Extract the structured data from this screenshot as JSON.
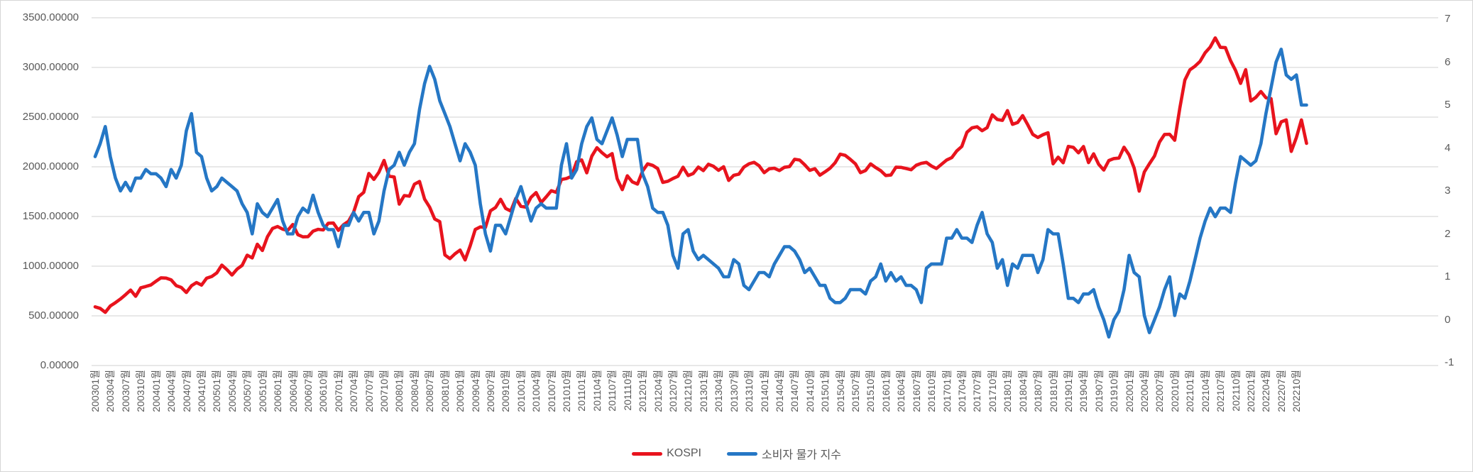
{
  "chart_data": {
    "type": "line",
    "title": "",
    "xlabel": "",
    "ylabel_left": "",
    "ylabel_right": "",
    "grid": true,
    "legend_position": "bottom",
    "left_axis": {
      "min": 0,
      "max": 3500,
      "tick_labels": [
        "3500.00000",
        "3000.00000",
        "2500.00000",
        "2000.00000",
        "1500.00000",
        "1000.00000",
        "500.00000",
        "0.00000"
      ]
    },
    "right_axis": {
      "min": -1,
      "max": 7,
      "tick_labels": [
        "7",
        "6",
        "5",
        "4",
        "3",
        "2",
        "1",
        "0",
        "-1"
      ]
    },
    "x_monthly_start": "200301",
    "x_monthly_end": "202212",
    "x_tick_labels": [
      "200301월",
      "200304월",
      "200307월",
      "200310월",
      "200401월",
      "200404월",
      "200407월",
      "200410월",
      "200501월",
      "200504월",
      "200507월",
      "200510월",
      "200601월",
      "200604월",
      "200607월",
      "200610월",
      "200701월",
      "200704월",
      "200707월",
      "200710월",
      "200801월",
      "200804월",
      "200807월",
      "200810월",
      "200901월",
      "200904월",
      "200907월",
      "200910월",
      "201001월",
      "201004월",
      "201007월",
      "201010월",
      "201101월",
      "201104월",
      "201107월",
      "201110월",
      "201201월",
      "201204월",
      "201207월",
      "201210월",
      "201301월",
      "201304월",
      "201307월",
      "201310월",
      "201401월",
      "201404월",
      "201407월",
      "201410월",
      "201501월",
      "201504월",
      "201507월",
      "201510월",
      "201601월",
      "201604월",
      "201607월",
      "201610월",
      "201701월",
      "201704월",
      "201707월",
      "201710월",
      "201801월",
      "201804월",
      "201807월",
      "201810월",
      "201901월",
      "201904월",
      "201907월",
      "201910월",
      "202001월",
      "202004월",
      "202007월",
      "202010월",
      "202101월",
      "202104월",
      "202107월",
      "202110월",
      "202201월",
      "202204월",
      "202207월",
      "202210월"
    ],
    "series": [
      {
        "name": "KOSPI",
        "axis": "left",
        "color": "#e8131d",
        "values": [
          591,
          575,
          535,
          599,
          633,
          670,
          713,
          759,
          697,
          782,
          796,
          811,
          848,
          883,
          880,
          862,
          804,
          786,
          735,
          803,
          835,
          809,
          879,
          896,
          932,
          1011,
          966,
          911,
          970,
          1008,
          1111,
          1083,
          1221,
          1158,
          1297,
          1379,
          1399,
          1372,
          1360,
          1419,
          1317,
          1295,
          1297,
          1352,
          1371,
          1364,
          1432,
          1434,
          1360,
          1417,
          1453,
          1542,
          1700,
          1743,
          1933,
          1873,
          1946,
          2064,
          1906,
          1897,
          1624,
          1711,
          1704,
          1825,
          1852,
          1675,
          1594,
          1474,
          1448,
          1113,
          1076,
          1124,
          1162,
          1063,
          1206,
          1369,
          1395,
          1390,
          1557,
          1591,
          1673,
          1581,
          1555,
          1682,
          1602,
          1594,
          1693,
          1741,
          1641,
          1698,
          1759,
          1743,
          1872,
          1882,
          1905,
          2051,
          2069,
          1939,
          2107,
          2192,
          2142,
          2101,
          2133,
          1880,
          1770,
          1909,
          1848,
          1826,
          1956,
          2030,
          2014,
          1982,
          1843,
          1854,
          1882,
          1905,
          1996,
          1912,
          1932,
          1997,
          1962,
          2026,
          2005,
          1964,
          2001,
          1863,
          1914,
          1926,
          1997,
          2030,
          2045,
          2011,
          1941,
          1980,
          1986,
          1962,
          1995,
          2002,
          2076,
          2068,
          2020,
          1964,
          1981,
          1916,
          1949,
          1986,
          2041,
          2127,
          2115,
          2074,
          2030,
          1941,
          1963,
          2029,
          1992,
          1961,
          1912,
          1917,
          1996,
          1994,
          1983,
          1970,
          2016,
          2035,
          2044,
          2008,
          1983,
          2026,
          2068,
          2092,
          2160,
          2205,
          2347,
          2392,
          2403,
          2363,
          2394,
          2523,
          2476,
          2467,
          2566,
          2427,
          2446,
          2515,
          2423,
          2326,
          2295,
          2323,
          2343,
          2030,
          2097,
          2041,
          2205,
          2196,
          2141,
          2204,
          2042,
          2131,
          2025,
          1967,
          2063,
          2083,
          2088,
          2197,
          2119,
          1987,
          1755,
          1948,
          2030,
          2108,
          2249,
          2326,
          2327,
          2267,
          2591,
          2873,
          2976,
          3013,
          3061,
          3148,
          3204,
          3297,
          3202,
          3199,
          3069,
          2970,
          2839,
          2977,
          2663,
          2699,
          2758,
          2695,
          2686,
          2333,
          2452,
          2472,
          2155,
          2294,
          2472,
          2236
        ]
      },
      {
        "name": "소비자 물가 지수",
        "axis": "right",
        "color": "#2577c5",
        "values": [
          3.8,
          4.1,
          4.5,
          3.8,
          3.3,
          3.0,
          3.2,
          3.0,
          3.3,
          3.3,
          3.5,
          3.4,
          3.4,
          3.3,
          3.1,
          3.5,
          3.3,
          3.6,
          4.4,
          4.8,
          3.9,
          3.8,
          3.3,
          3.0,
          3.1,
          3.3,
          3.2,
          3.1,
          3.0,
          2.7,
          2.5,
          2.0,
          2.7,
          2.5,
          2.4,
          2.6,
          2.8,
          2.3,
          2.0,
          2.0,
          2.4,
          2.6,
          2.5,
          2.9,
          2.5,
          2.2,
          2.1,
          2.1,
          1.7,
          2.2,
          2.2,
          2.5,
          2.3,
          2.5,
          2.5,
          2.0,
          2.3,
          3.0,
          3.5,
          3.6,
          3.9,
          3.6,
          3.9,
          4.1,
          4.9,
          5.5,
          5.9,
          5.6,
          5.1,
          4.8,
          4.5,
          4.1,
          3.7,
          4.1,
          3.9,
          3.6,
          2.7,
          2.0,
          1.6,
          2.2,
          2.2,
          2.0,
          2.4,
          2.8,
          3.1,
          2.7,
          2.3,
          2.6,
          2.7,
          2.6,
          2.6,
          2.6,
          3.6,
          4.1,
          3.3,
          3.5,
          4.1,
          4.5,
          4.7,
          4.2,
          4.1,
          4.4,
          4.7,
          4.3,
          3.8,
          4.2,
          4.2,
          4.2,
          3.4,
          3.1,
          2.6,
          2.5,
          2.5,
          2.2,
          1.5,
          1.2,
          2.0,
          2.1,
          1.6,
          1.4,
          1.5,
          1.4,
          1.3,
          1.2,
          1.0,
          1.0,
          1.4,
          1.3,
          0.8,
          0.7,
          0.9,
          1.1,
          1.1,
          1.0,
          1.3,
          1.5,
          1.7,
          1.7,
          1.6,
          1.4,
          1.1,
          1.2,
          1.0,
          0.8,
          0.8,
          0.5,
          0.4,
          0.4,
          0.5,
          0.7,
          0.7,
          0.7,
          0.6,
          0.9,
          1.0,
          1.3,
          0.9,
          1.1,
          0.9,
          1.0,
          0.8,
          0.8,
          0.7,
          0.4,
          1.2,
          1.3,
          1.3,
          1.3,
          1.9,
          1.9,
          2.1,
          1.9,
          1.9,
          1.8,
          2.2,
          2.5,
          2.0,
          1.8,
          1.2,
          1.4,
          0.8,
          1.3,
          1.2,
          1.5,
          1.5,
          1.5,
          1.1,
          1.4,
          2.1,
          2.0,
          2.0,
          1.3,
          0.5,
          0.5,
          0.4,
          0.6,
          0.6,
          0.7,
          0.3,
          0.0,
          -0.4,
          0.0,
          0.2,
          0.7,
          1.5,
          1.1,
          1.0,
          0.1,
          -0.3,
          0.0,
          0.3,
          0.7,
          1.0,
          0.1,
          0.6,
          0.5,
          0.9,
          1.4,
          1.9,
          2.3,
          2.6,
          2.4,
          2.6,
          2.6,
          2.5,
          3.2,
          3.8,
          3.7,
          3.6,
          3.7,
          4.1,
          4.8,
          5.4,
          6.0,
          6.3,
          5.7,
          5.6,
          5.7,
          5.0,
          5.0
        ]
      }
    ],
    "colors": {
      "gridline": "#d9d9d9",
      "axis_text": "#595959",
      "kospi_line": "#e8131d",
      "cpi_line": "#2577c5"
    }
  }
}
